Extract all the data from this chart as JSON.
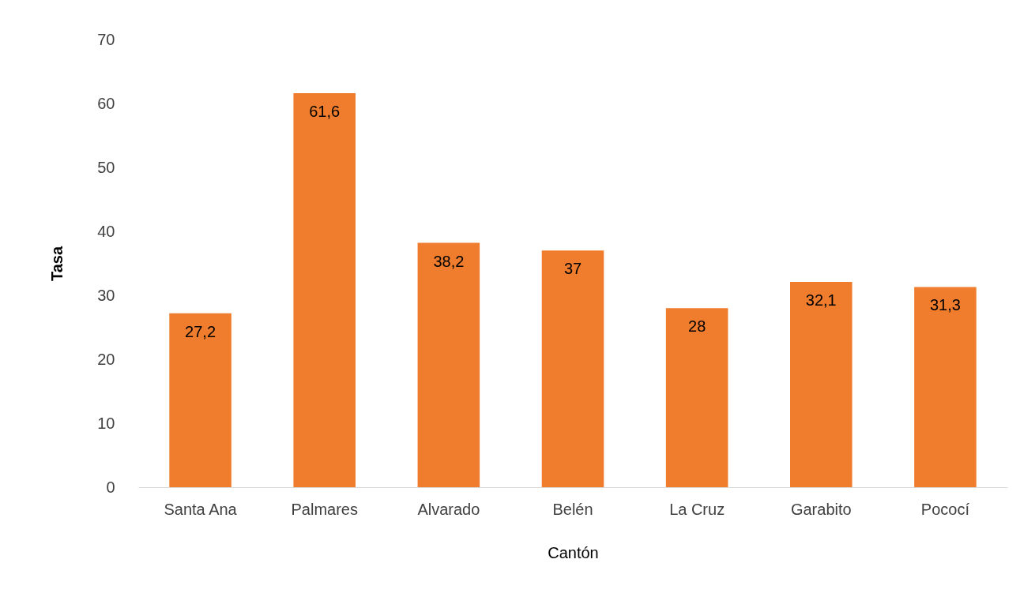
{
  "chart_data": {
    "type": "bar",
    "xlabel": "Cantón",
    "ylabel": "Tasa",
    "categories": [
      "Santa Ana",
      "Palmares",
      "Alvarado",
      "Belén",
      "La Cruz",
      "Garabito",
      "Pococí"
    ],
    "values": [
      27.2,
      61.6,
      38.2,
      37,
      28,
      32.1,
      31.3
    ],
    "value_labels": [
      "27,2",
      "61,6",
      "38,2",
      "37",
      "28",
      "32,1",
      "31,3"
    ],
    "color": "#ef7d2d",
    "ylim": [
      0,
      70
    ],
    "yticks": [
      0,
      10,
      20,
      30,
      40,
      50,
      60,
      70
    ],
    "grid": false
  }
}
